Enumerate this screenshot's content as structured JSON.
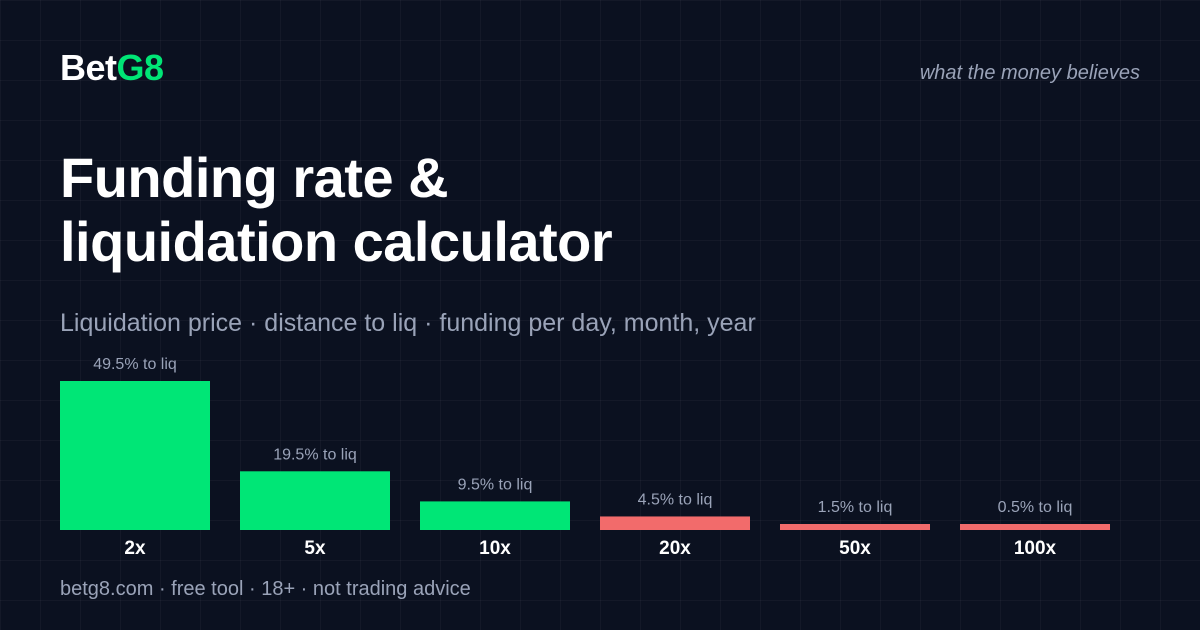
{
  "brand": {
    "name_part1": "Bet",
    "name_part2": "G8"
  },
  "tagline": "what the money believes",
  "title_lines": [
    "Funding rate &",
    "liquidation calculator"
  ],
  "subtitle": "Liquidation price · distance to liq · funding per day, month, year",
  "footer": "betg8.com · free tool · 18+ · not trading advice",
  "colors": {
    "background": "#0b1120",
    "safe": "#00e676",
    "danger": "#f26b6b",
    "muted": "#9aa3b8"
  },
  "chart_data": {
    "type": "bar",
    "categories": [
      "2x",
      "5x",
      "10x",
      "20x",
      "50x",
      "100x"
    ],
    "values": [
      49.5,
      19.5,
      9.5,
      4.5,
      1.5,
      0.5
    ],
    "data_labels": [
      "49.5% to liq",
      "19.5% to liq",
      "9.5% to liq",
      "4.5% to liq",
      "1.5% to liq",
      "0.5% to liq"
    ],
    "bar_colors": [
      "#00e676",
      "#00e676",
      "#00e676",
      "#f26b6b",
      "#f26b6b",
      "#f26b6b"
    ],
    "ylim": [
      0,
      49.5
    ],
    "grid": false,
    "legend": "none"
  }
}
